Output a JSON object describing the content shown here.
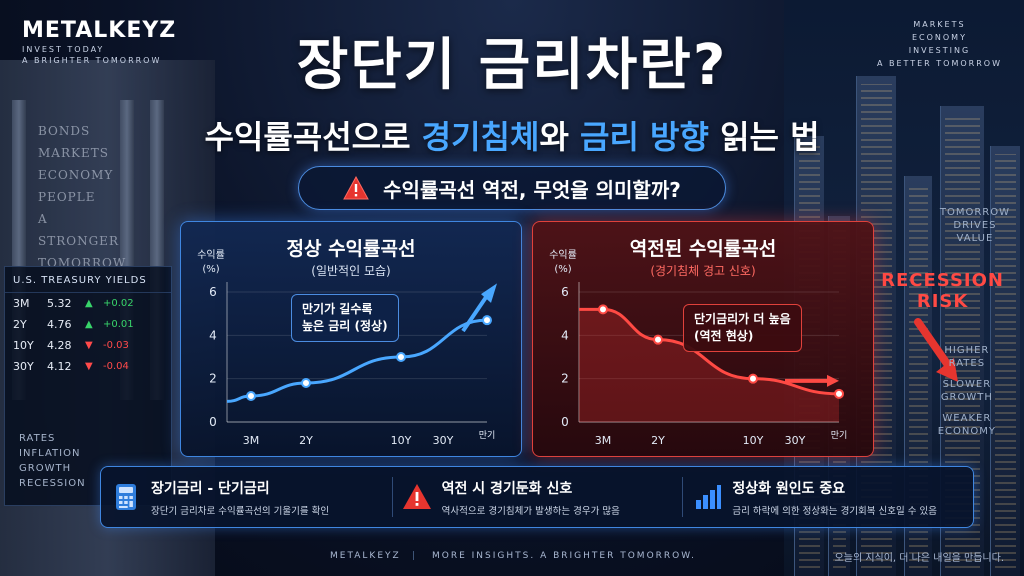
{
  "brand": {
    "logo": "METALKEYZ",
    "tagline_1": "INVEST TODAY",
    "tagline_2": "A BRIGHTER TOMORROW"
  },
  "top_right_words": [
    "MARKETS",
    "ECONOMY",
    "INVESTING",
    "A BETTER TOMORROW"
  ],
  "building_engraving": [
    "BONDS",
    "MARKETS",
    "ECONOMY",
    "PEOPLE",
    "A STRONGER",
    "TOMORROW"
  ],
  "title": "장단기 금리차란?",
  "subtitle": {
    "part1": "수익률곡선으로 ",
    "hl1": "경기침체",
    "part2": "와 ",
    "hl2": "금리 방향",
    "part3": " 읽는 법"
  },
  "question": "수익률곡선 역전, 무엇을 의미할까?",
  "board": {
    "header": "U.S. TREASURY YIELDS",
    "rows": [
      {
        "term": "3M",
        "rate": "5.32",
        "dir": "up",
        "change": "+0.02"
      },
      {
        "term": "2Y",
        "rate": "4.76",
        "dir": "up",
        "change": "+0.01"
      },
      {
        "term": "10Y",
        "rate": "4.28",
        "dir": "down",
        "change": "-0.03"
      },
      {
        "term": "30Y",
        "rate": "4.12",
        "dir": "down",
        "change": "-0.04"
      }
    ],
    "words": [
      "RATES",
      "INFLATION",
      "GROWTH",
      "RECESSION"
    ]
  },
  "right_side": {
    "top_words": [
      "TOMORROW",
      "DRIVES",
      "VALUE"
    ],
    "risk": [
      "RECESSION",
      "RISK"
    ],
    "bottom_words": [
      "HIGHER",
      "RATES",
      "SLOWER",
      "GROWTH",
      "WEAKER",
      "ECONOMY"
    ]
  },
  "panels": {
    "normal": {
      "title": "정상 수익률곡선",
      "subtitle": "(일반적인 모습)",
      "callout_1": "만기가 길수록",
      "callout_2": "높은 금리 (정상)",
      "ylabel_1": "수익률",
      "ylabel_2": "(%)",
      "color": "#49a7ff"
    },
    "inverted": {
      "title": "역전된 수익률곡선",
      "subtitle": "(경기침체 경고 신호)",
      "callout_1": "단기금리가 더 높음",
      "callout_2": "(역전 현상)",
      "ylabel_1": "수익률",
      "ylabel_2": "(%)",
      "color": "#ff4a44"
    }
  },
  "chart_data": [
    {
      "type": "line",
      "title": "정상 수익률곡선",
      "subtitle": "(일반적인 모습)",
      "ylabel": "수익률 (%)",
      "xlabel": "만기",
      "x_ticks": [
        "3M",
        "2Y",
        "10Y",
        "30Y"
      ],
      "ylim": [
        0,
        6
      ],
      "y_ticks": [
        0,
        2,
        4,
        6
      ],
      "points": [
        {
          "x": "3M",
          "y": 1.2
        },
        {
          "x": "2Y",
          "y": 1.8
        },
        {
          "x": "10Y",
          "y": 3.0
        },
        {
          "x": "만기",
          "y": 4.7
        }
      ],
      "grid": true
    },
    {
      "type": "line",
      "title": "역전된 수익률곡선",
      "subtitle": "(경기침체 경고 신호)",
      "ylabel": "수익률 (%)",
      "xlabel": "만기",
      "x_ticks": [
        "3M",
        "2Y",
        "10Y",
        "30Y"
      ],
      "ylim": [
        0,
        6
      ],
      "y_ticks": [
        0,
        2,
        4,
        6
      ],
      "points": [
        {
          "x": "3M",
          "y": 5.2
        },
        {
          "x": "2Y",
          "y": 3.8
        },
        {
          "x": "10Y",
          "y": 2.0
        },
        {
          "x": "만기",
          "y": 1.3
        }
      ],
      "grid": true
    }
  ],
  "info": [
    {
      "heading": "장기금리 - 단기금리",
      "desc": "장단기 금리차로 수익률곡선의 기울기를 확인",
      "icon": "calculator-icon"
    },
    {
      "heading": "역전 시 경기둔화 신호",
      "desc": "역사적으로 경기침체가 발생하는 경우가 많음",
      "icon": "warning-icon"
    },
    {
      "heading": "정상화 원인도 중요",
      "desc": "금리 하락에 의한 정상화는 경기회복 신호일 수 있음",
      "icon": "bar-chart-icon"
    }
  ],
  "footer": {
    "brand": "METALKEYZ",
    "separator": "|",
    "tagline": "MORE INSIGHTS. A BRIGHTER TOMORROW.",
    "korean": "오늘의 지식이, 더 나은 내일을 만듭니다."
  }
}
